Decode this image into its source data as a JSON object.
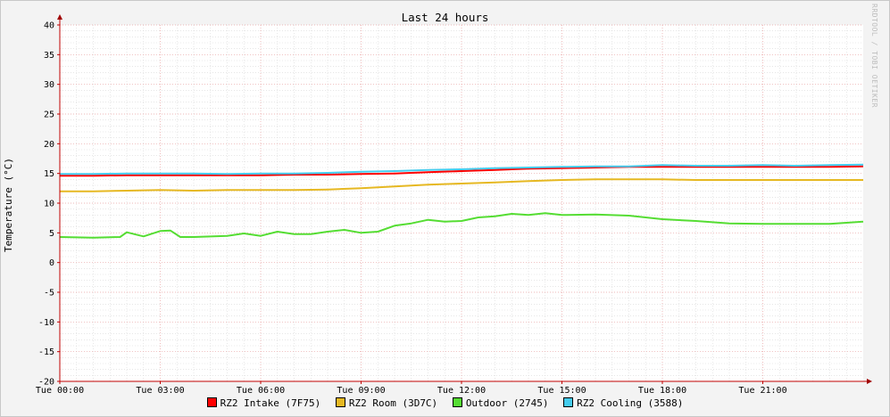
{
  "chart_data": {
    "type": "line",
    "title": "Last 24 hours",
    "ylabel": "Temperature (°C)",
    "xlabel": "",
    "watermark": "RRDTOOL / TOBI OETIKER",
    "ylim": [
      -20,
      40
    ],
    "yticks": [
      40,
      35,
      30,
      25,
      20,
      15,
      10,
      5,
      0,
      -5,
      -10,
      -15,
      -20
    ],
    "xlim_hours": [
      0,
      24
    ],
    "xticks": [
      {
        "hour": 0,
        "label": "Tue 00:00"
      },
      {
        "hour": 3,
        "label": "Tue 03:00"
      },
      {
        "hour": 6,
        "label": "Tue 06:00"
      },
      {
        "hour": 9,
        "label": "Tue 09:00"
      },
      {
        "hour": 12,
        "label": "Tue 12:00"
      },
      {
        "hour": 15,
        "label": "Tue 15:00"
      },
      {
        "hour": 18,
        "label": "Tue 18:00"
      },
      {
        "hour": 21,
        "label": "Tue 21:00"
      }
    ],
    "grid": true,
    "legend_position": "bottom",
    "series": [
      {
        "name": "RZ2 Intake (7F75)",
        "color": "#ff0000",
        "x": [
          0,
          1,
          2,
          3,
          4,
          5,
          6,
          7,
          8,
          9,
          10,
          11,
          12,
          13,
          14,
          15,
          16,
          17,
          18,
          19,
          20,
          21,
          22,
          23,
          24
        ],
        "y": [
          14.6,
          14.6,
          14.7,
          14.7,
          14.7,
          14.7,
          14.7,
          14.8,
          14.8,
          14.9,
          15.0,
          15.2,
          15.4,
          15.6,
          15.8,
          15.9,
          16.0,
          16.1,
          16.1,
          16.1,
          16.1,
          16.1,
          16.1,
          16.1,
          16.2
        ]
      },
      {
        "name": "RZ2 Room (3D7C)",
        "color": "#e6b822",
        "x": [
          0,
          1,
          2,
          3,
          4,
          5,
          6,
          7,
          8,
          9,
          10,
          11,
          12,
          13,
          14,
          15,
          16,
          17,
          18,
          19,
          20,
          21,
          22,
          23,
          24
        ],
        "y": [
          12.0,
          12.0,
          12.1,
          12.2,
          12.1,
          12.2,
          12.2,
          12.2,
          12.3,
          12.5,
          12.8,
          13.1,
          13.3,
          13.5,
          13.7,
          13.9,
          14.0,
          14.0,
          14.0,
          13.9,
          13.9,
          13.9,
          13.9,
          13.9,
          13.9
        ]
      },
      {
        "name": "Outdoor (2745)",
        "color": "#55dd33",
        "x": [
          0,
          1,
          1.8,
          2,
          2.5,
          3,
          3.3,
          3.6,
          4,
          5,
          5.5,
          6,
          6.5,
          7,
          7.5,
          8,
          8.5,
          9,
          9.5,
          10,
          10.5,
          11,
          11.5,
          12,
          12.5,
          13,
          13.5,
          14,
          14.5,
          15,
          16,
          17,
          18,
          19,
          20,
          21,
          22,
          23,
          24
        ],
        "y": [
          4.3,
          4.2,
          4.3,
          5.1,
          4.4,
          5.3,
          5.4,
          4.3,
          4.3,
          4.5,
          4.9,
          4.5,
          5.2,
          4.8,
          4.8,
          5.2,
          5.5,
          5.0,
          5.2,
          6.2,
          6.6,
          7.2,
          6.9,
          7.0,
          7.6,
          7.8,
          8.2,
          8.0,
          8.3,
          8.0,
          8.1,
          7.9,
          7.3,
          7.0,
          6.6,
          6.5,
          6.5,
          6.5,
          6.9
        ]
      },
      {
        "name": "RZ2 Cooling (3588)",
        "color": "#44ccee",
        "x": [
          0,
          1,
          2,
          3,
          4,
          5,
          6,
          7,
          8,
          9,
          10,
          11,
          12,
          13,
          14,
          15,
          16,
          17,
          18,
          19,
          20,
          21,
          22,
          23,
          24
        ],
        "y": [
          14.9,
          14.9,
          15.0,
          15.0,
          15.0,
          14.9,
          15.0,
          15.0,
          15.1,
          15.3,
          15.4,
          15.6,
          15.7,
          15.9,
          16.0,
          16.1,
          16.2,
          16.2,
          16.4,
          16.3,
          16.3,
          16.4,
          16.3,
          16.4,
          16.5
        ]
      }
    ]
  }
}
